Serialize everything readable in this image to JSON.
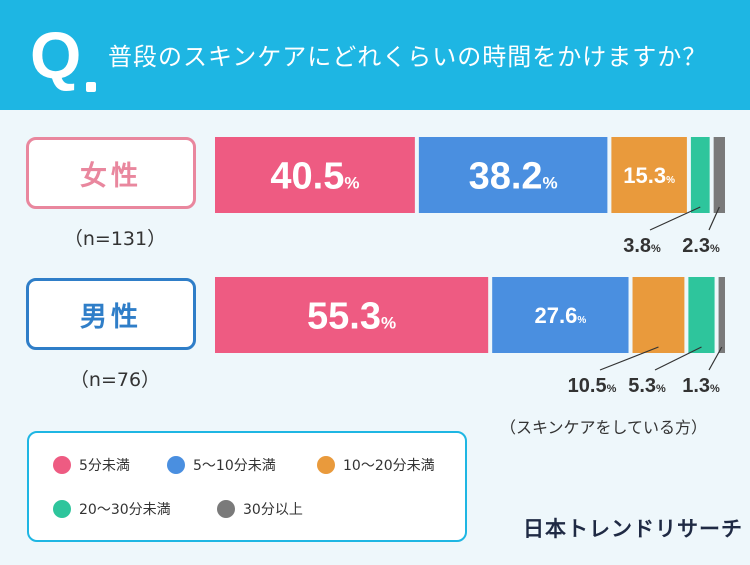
{
  "header": {
    "q_letter": "Q",
    "question": "普段のスキンケアにどれくらいの時間をかけますか？"
  },
  "groups": {
    "female": {
      "label": "女性",
      "n": "（n=131）"
    },
    "male": {
      "label": "男性",
      "n": "（n=76）"
    }
  },
  "note": "（スキンケアをしている方）",
  "brand": "日本トレンドリサーチ",
  "chart_data": {
    "type": "bar",
    "orientation": "horizontal-stacked-100",
    "unit": "%",
    "categories": [
      "女性",
      "男性"
    ],
    "series": [
      {
        "name": "5分未満",
        "color": "#ee5b82",
        "values": [
          40.5,
          55.3
        ]
      },
      {
        "name": "5〜10分未満",
        "color": "#4a8fe0",
        "values": [
          38.2,
          27.6
        ]
      },
      {
        "name": "10〜20分未満",
        "color": "#e99a3c",
        "values": [
          15.3,
          10.5
        ]
      },
      {
        "name": "20〜30分未満",
        "color": "#2ec59c",
        "values": [
          3.8,
          5.3
        ]
      },
      {
        "name": "30分以上",
        "color": "#7a7a7a",
        "values": [
          2.3,
          1.3
        ]
      }
    ],
    "bar_labels": [
      [
        "40.5",
        "38.2",
        "15.3",
        "3.8",
        "2.3"
      ],
      [
        "55.3",
        "27.6",
        "10.5",
        "5.3",
        "1.3"
      ]
    ],
    "percent_sign": "%",
    "legend_position": "bottom-left"
  }
}
